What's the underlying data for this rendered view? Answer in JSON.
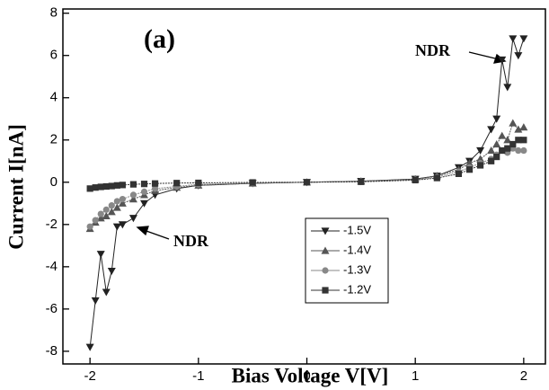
{
  "chart_data": {
    "type": "line",
    "xlabel": "Bias Voltage V[V]",
    "ylabel": "Current I[nA]",
    "annotations": [
      "(a)",
      "NDR",
      "NDR"
    ],
    "x": [
      -2,
      -1.95,
      -1.9,
      -1.85,
      -1.8,
      -1.75,
      -1.7,
      -1.6,
      -1.5,
      -1.4,
      -1.2,
      -1.0,
      -0.5,
      0,
      0.5,
      1.0,
      1.2,
      1.4,
      1.5,
      1.6,
      1.7,
      1.75,
      1.8,
      1.85,
      1.9,
      1.95,
      2.0
    ],
    "series": [
      {
        "name": "-1.5V",
        "color": "#222222",
        "marker": "triangle-down",
        "values": [
          -7.8,
          -5.6,
          -3.4,
          -5.2,
          -4.2,
          -2.1,
          -2.0,
          -1.7,
          -1.0,
          -0.6,
          -0.3,
          -0.15,
          -0.05,
          0,
          0.05,
          0.15,
          0.3,
          0.7,
          1.0,
          1.5,
          2.5,
          3.0,
          5.8,
          4.5,
          6.8,
          6.0,
          6.8
        ]
      },
      {
        "name": "-1.4V",
        "color": "#555555",
        "marker": "triangle-up",
        "values": [
          -2.2,
          -1.9,
          -1.7,
          -1.6,
          -1.4,
          -1.2,
          -1.0,
          -0.8,
          -0.6,
          -0.4,
          -0.25,
          -0.15,
          -0.05,
          0,
          0.05,
          0.15,
          0.3,
          0.6,
          0.9,
          1.1,
          1.5,
          1.8,
          2.2,
          2.0,
          2.8,
          2.5,
          2.6
        ]
      },
      {
        "name": "-1.3V",
        "color": "#888888",
        "marker": "circle",
        "values": [
          -2.1,
          -1.8,
          -1.5,
          -1.3,
          -1.1,
          -0.9,
          -0.8,
          -0.6,
          -0.45,
          -0.3,
          -0.2,
          -0.1,
          -0.04,
          0,
          0.04,
          0.12,
          0.25,
          0.5,
          0.7,
          0.9,
          1.1,
          1.3,
          1.5,
          1.4,
          1.6,
          1.5,
          1.5
        ]
      },
      {
        "name": "-1.2V",
        "color": "#333333",
        "marker": "square",
        "values": [
          -0.3,
          -0.25,
          -0.22,
          -0.2,
          -0.18,
          -0.15,
          -0.13,
          -0.1,
          -0.08,
          -0.06,
          -0.04,
          -0.03,
          -0.01,
          0,
          0.02,
          0.1,
          0.2,
          0.4,
          0.6,
          0.8,
          1.0,
          1.2,
          1.5,
          1.6,
          1.8,
          2.0,
          2.0
        ]
      }
    ],
    "xlim": [
      -2.25,
      2.2
    ],
    "ylim": [
      -8.6,
      8.2
    ],
    "xticks": [
      -2,
      -1,
      0,
      1,
      2
    ],
    "yticks": [
      -8,
      -6,
      -4,
      -2,
      0,
      2,
      4,
      6,
      8
    ]
  }
}
